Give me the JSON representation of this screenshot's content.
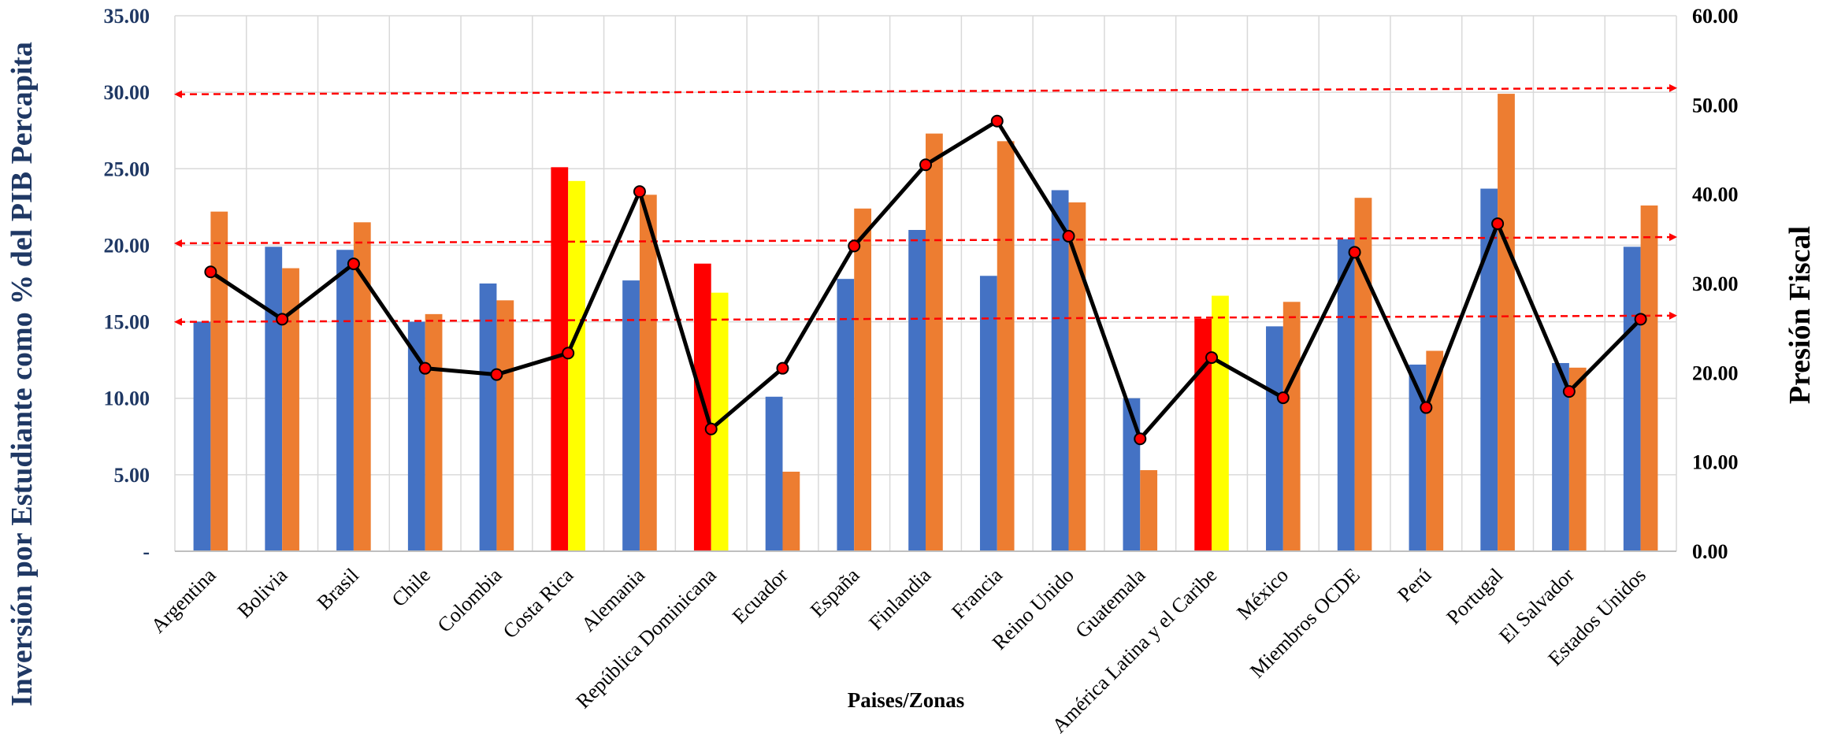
{
  "chart_data": {
    "type": "bar",
    "title": "",
    "xlabel": "Paises/Zonas",
    "ylabel": "Inversión por Estudiante como % del PIB Percapita",
    "y2label": "Presión Fiscal",
    "ylim": [
      0,
      35
    ],
    "y2lim": [
      0,
      60
    ],
    "yticks": [
      "-",
      "5.00",
      "10.00",
      "15.00",
      "20.00",
      "25.00",
      "30.00",
      "35.00"
    ],
    "y2ticks": [
      "0.00",
      "10.00",
      "20.00",
      "30.00",
      "40.00",
      "50.00",
      "60.00"
    ],
    "grid": true,
    "legend": "none",
    "categories": [
      "Argentina",
      "Bolivia",
      "Brasil",
      "Chile",
      "Colombia",
      "Costa Rica",
      "Alemania",
      "República Dominicana",
      "Ecuador",
      "España",
      "Finlandia",
      "Francia",
      "Reino Unido",
      "Guatemala",
      "América Latina y el Caribe",
      "México",
      "Miembros OCDE",
      "Perú",
      "Portugal",
      "El Salvador",
      "Estados Unidos"
    ],
    "series": [
      {
        "type": "bar",
        "axis": "left",
        "color": "#4472c4",
        "highlight_color": "#ff0000",
        "highlight_indices": [
          5,
          7,
          14
        ],
        "values": [
          15.0,
          19.9,
          19.7,
          15.0,
          17.5,
          25.1,
          17.7,
          18.8,
          10.1,
          17.8,
          21.0,
          18.0,
          23.6,
          10.0,
          15.2,
          14.7,
          20.4,
          12.2,
          23.7,
          12.3,
          19.9
        ]
      },
      {
        "type": "bar",
        "axis": "left",
        "color": "#ed7d31",
        "highlight_color": "#ffff00",
        "highlight_indices": [
          5,
          7,
          14
        ],
        "values": [
          22.2,
          18.5,
          21.5,
          15.5,
          16.4,
          24.2,
          23.3,
          16.9,
          5.2,
          22.4,
          27.3,
          26.8,
          22.8,
          5.3,
          16.7,
          16.3,
          23.1,
          13.1,
          29.9,
          12.0,
          22.6
        ]
      },
      {
        "type": "line",
        "axis": "right",
        "color": "#000000",
        "marker_color": "#ff0000",
        "values": [
          31.3,
          26.0,
          32.2,
          20.5,
          19.8,
          22.2,
          40.3,
          13.7,
          20.5,
          34.2,
          43.3,
          48.2,
          35.3,
          12.6,
          21.7,
          17.2,
          33.5,
          16.1,
          36.7,
          17.9,
          26.0
        ]
      }
    ],
    "reference_arrows": [
      {
        "axis": "right",
        "y_start": 51.2,
        "y_end": 51.9,
        "color": "#ff0000",
        "style": "dashed"
      },
      {
        "axis": "right",
        "y_start": 34.5,
        "y_end": 35.2,
        "color": "#ff0000",
        "style": "dashed"
      },
      {
        "axis": "right",
        "y_start": 25.7,
        "y_end": 26.4,
        "color": "#ff0000",
        "style": "dashed"
      }
    ]
  }
}
